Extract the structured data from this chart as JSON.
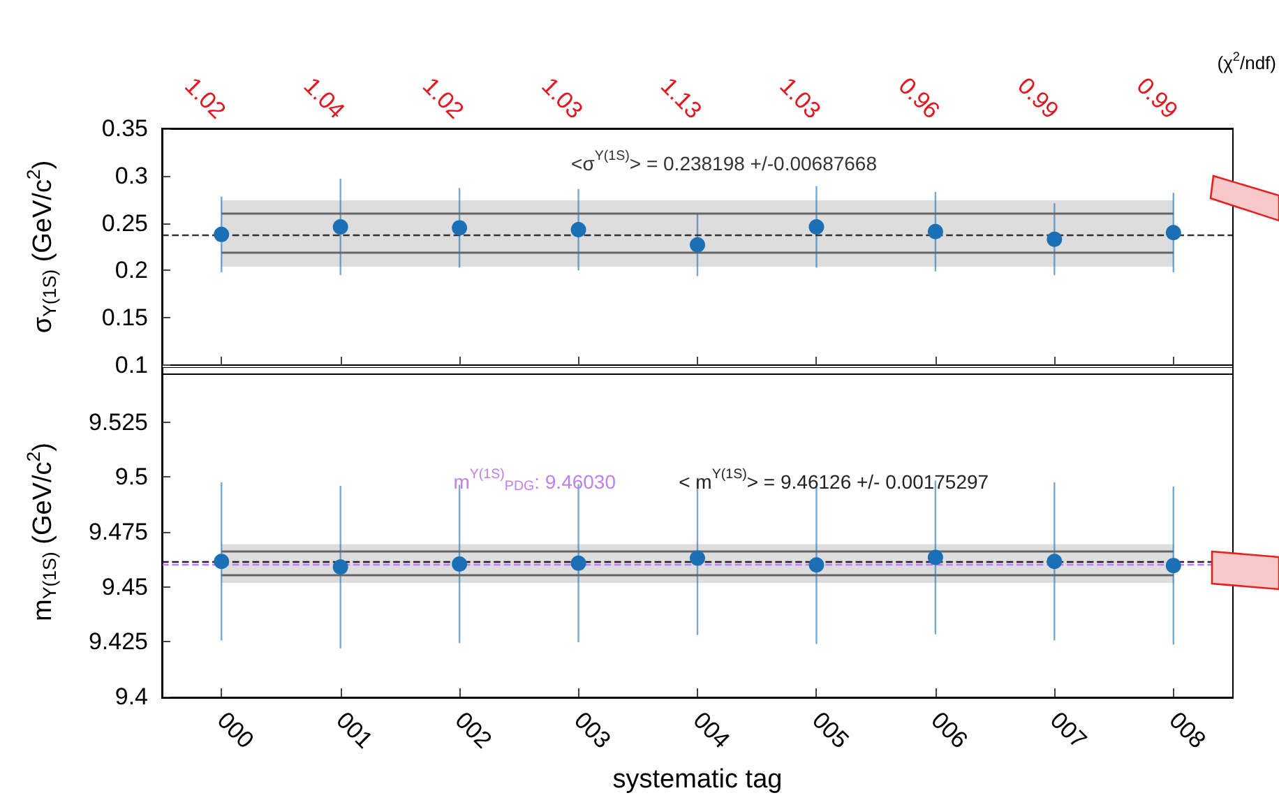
{
  "chart_data": [
    {
      "type": "scatter",
      "ylabel": "σ$_{Υ(1S)}$ (GeV/c$^{2}$)",
      "categories": [
        "000",
        "001",
        "002",
        "003",
        "004",
        "005",
        "006",
        "007",
        "008"
      ],
      "series": [
        {
          "color": "#1a6fb5",
          "values": [
            0.238,
            0.246,
            0.245,
            0.243,
            0.227,
            0.246,
            0.241,
            0.233,
            0.24
          ],
          "errors": [
            0.04,
            0.051,
            0.042,
            0.043,
            0.033,
            0.043,
            0.042,
            0.038,
            0.042
          ]
        }
      ],
      "ylim": [
        0.1,
        0.35
      ],
      "yticks": [
        0.1,
        0.15,
        0.2,
        0.25,
        0.3,
        0.35
      ],
      "tick_labels": "y",
      "grid": false,
      "marker": "circle",
      "bands": [
        {
          "axis": "y",
          "from": 0.204,
          "to": 0.274,
          "color": "#dddddd"
        }
      ],
      "ref_lines": [
        {
          "axis": "y",
          "value": 0.2606,
          "color": "#666666",
          "line_style": "solid"
        },
        {
          "axis": "y",
          "value": 0.219,
          "color": "#666666",
          "line_style": "solid"
        },
        {
          "axis": "y",
          "value": 0.238198,
          "color": "#333333",
          "line_style": "dashed"
        }
      ],
      "annotations": [
        "1.02",
        "1.04",
        "1.02",
        "1.03",
        "1.13",
        "1.03",
        "0.96",
        "0.99",
        "0.99",
        "(χ$^{2}$/ndf)",
        "<σ$^{Υ(1S)}$> = 0.238198 +/-0.00687668"
      ]
    },
    {
      "type": "scatter",
      "xlabel": "systematic tag",
      "ylabel": "m$_{Υ(1S)}$ (GeV/c$^{2}$)",
      "categories": [
        "000",
        "001",
        "002",
        "003",
        "004",
        "005",
        "006",
        "007",
        "008"
      ],
      "series": [
        {
          "color": "#1a6fb5",
          "values": [
            9.4616,
            9.459,
            9.4604,
            9.4608,
            9.4631,
            9.46,
            9.4634,
            9.4616,
            9.4597
          ],
          "errors": [
            0.036,
            0.037,
            0.036,
            0.036,
            0.035,
            0.036,
            0.035,
            0.036,
            0.036
          ]
        }
      ],
      "ylim": [
        9.4,
        9.55
      ],
      "yticks": [
        9.4,
        9.425,
        9.45,
        9.475,
        9.5,
        9.525
      ],
      "grid": false,
      "marker": "circle",
      "bands": [
        {
          "axis": "y",
          "from": 9.4518,
          "to": 9.4694,
          "color": "#dddddd"
        }
      ],
      "ref_lines": [
        {
          "axis": "y",
          "value": 9.4664,
          "color": "#666666",
          "line_style": "solid"
        },
        {
          "axis": "y",
          "value": 9.4552,
          "color": "#666666",
          "line_style": "solid"
        },
        {
          "axis": "y",
          "value": 9.4603,
          "color": "#c080f0",
          "line_style": "dashed"
        },
        {
          "axis": "y",
          "value": 9.46126,
          "color": "#222222",
          "line_style": "dashed"
        }
      ],
      "annotations": [
        "m$^{Υ(1S)}$$_{PDG}$: 9.46030",
        "< m$^{Υ(1S)}$> = 9.46126 +/- 0.00175297"
      ]
    }
  ]
}
